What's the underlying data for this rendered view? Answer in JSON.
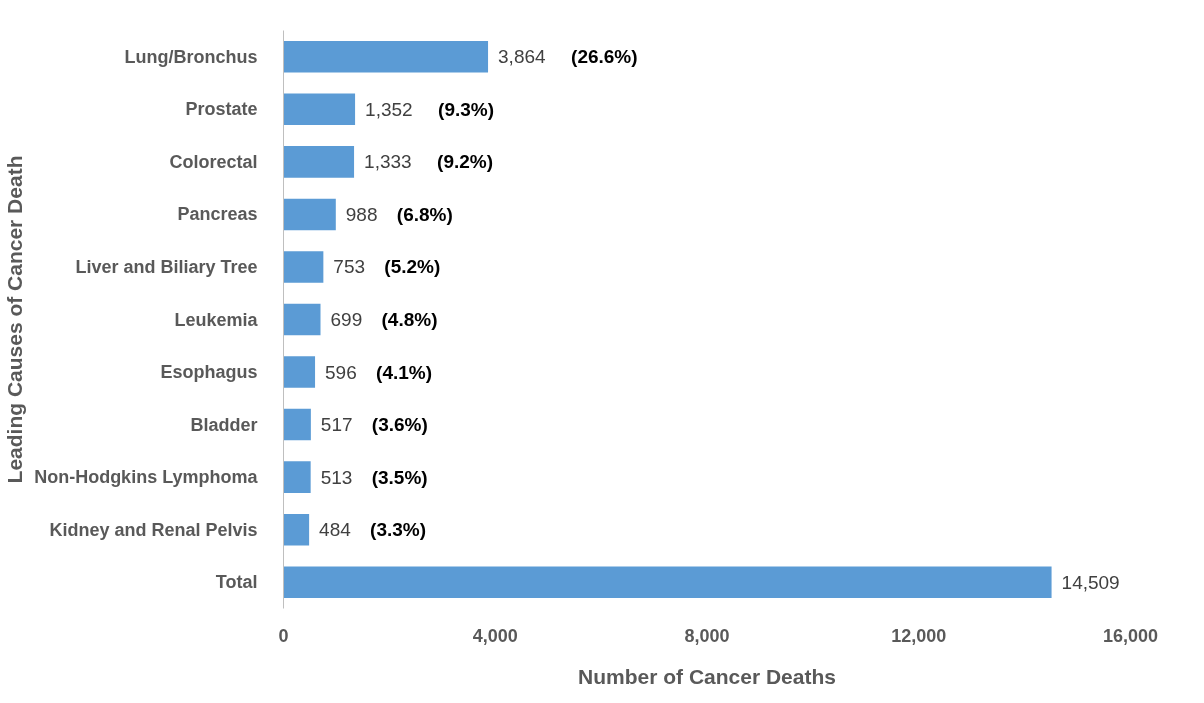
{
  "chart_data": {
    "type": "bar",
    "orientation": "horizontal",
    "xlabel": "Number of Cancer Deaths",
    "ylabel": "Leading Causes of Cancer Death",
    "categories": [
      "Lung/Bronchus",
      "Prostate",
      "Colorectal",
      "Pancreas",
      "Liver and Biliary Tree",
      "Leukemia",
      "Esophagus",
      "Bladder",
      "Non-Hodgkins Lymphoma",
      "Kidney and Renal Pelvis",
      "Total"
    ],
    "values": [
      3864,
      1352,
      1333,
      988,
      753,
      699,
      596,
      517,
      513,
      484,
      14509
    ],
    "value_labels": [
      "3,864",
      "1,352",
      "1,333",
      "988",
      "753",
      "699",
      "596",
      "517",
      "513",
      "484",
      "14,509"
    ],
    "color": "#5b9bd5",
    "xlim": [
      0,
      16000
    ],
    "xticks": [
      {
        "value": 0,
        "label": "0"
      },
      {
        "value": 4000,
        "label": "4,000"
      },
      {
        "value": 8000,
        "label": "8,000"
      },
      {
        "value": 12000,
        "label": "12,000"
      },
      {
        "value": 16000,
        "label": "16,000"
      }
    ],
    "grid": false,
    "annotations": [
      "(26.6%)",
      "(9.3%)",
      "(9.2%)",
      "(6.8%)",
      "(5.2%)",
      "(4.8%)",
      "(4.1%)",
      "(3.6%)",
      "(3.5%)",
      "(3.3%)"
    ]
  }
}
